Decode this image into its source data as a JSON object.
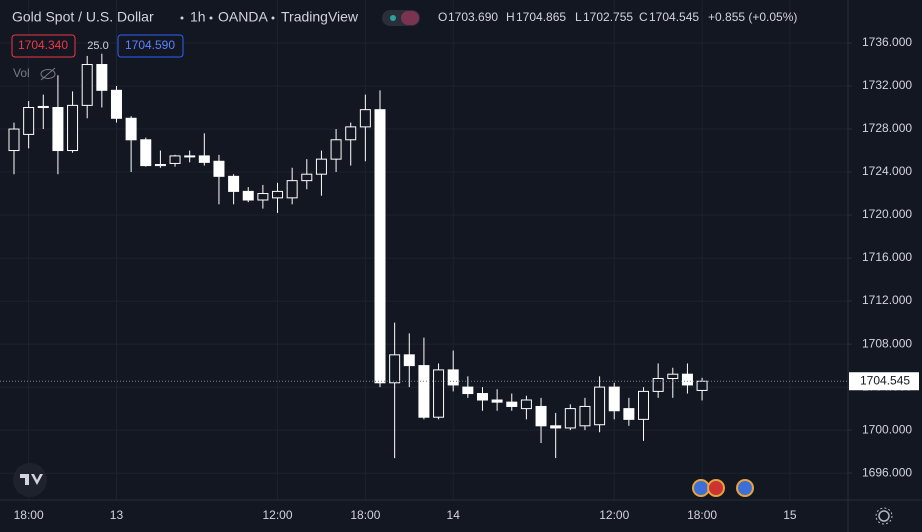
{
  "header": {
    "symbol": "Gold Spot / U.S. Dollar",
    "interval": "1h",
    "source": "OANDA",
    "platform": "TradingView",
    "ohlc": [
      {
        "key": "O",
        "value": "1703.690"
      },
      {
        "key": "H",
        "value": "1704.865"
      },
      {
        "key": "L",
        "value": "1702.755"
      },
      {
        "key": "C",
        "value": "1704.545"
      }
    ],
    "change": "+0.855 (+0.05%)"
  },
  "trade": {
    "sell": "1704.340",
    "spread": "25.0",
    "buy": "1704.590",
    "volume_label": "Vol"
  },
  "chart_data": {
    "type": "candlestick",
    "categories": [
      null,
      "18:00",
      null,
      null,
      null,
      null,
      null,
      "13",
      null,
      null,
      null,
      null,
      null,
      null,
      null,
      null,
      null,
      null,
      "12:00",
      null,
      null,
      null,
      null,
      null,
      "18:00",
      null,
      null,
      null,
      null,
      null,
      "14",
      null,
      null,
      null,
      null,
      null,
      null,
      null,
      null,
      null,
      null,
      "12:00",
      null,
      null,
      null,
      null,
      null,
      "18:00",
      null,
      null,
      null,
      null,
      null,
      "15",
      null,
      null,
      null
    ],
    "open": [
      1726.0,
      1727.5,
      1730.0,
      1730.0,
      1726.0,
      1730.2,
      1734.0,
      1731.6,
      1729.0,
      1727.0,
      1724.6,
      1724.8,
      1725.5,
      1725.5,
      1725.0,
      1723.6,
      1722.2,
      1721.4,
      1721.6,
      1721.6,
      1723.2,
      1723.8,
      1725.2,
      1727.0,
      1728.2,
      1729.8,
      1704.4,
      1707.0,
      1706.0,
      1701.2,
      1705.6,
      1704.0,
      1703.4,
      1702.8,
      1702.6,
      1702.0,
      1702.2,
      1700.4,
      1700.2,
      1700.4,
      1700.5,
      1704.0,
      1702.0,
      1701.0,
      1703.6,
      1704.8,
      1705.2,
      1703.69,
      null,
      null,
      null,
      null,
      null,
      null,
      null,
      null,
      null
    ],
    "high": [
      1728.6,
      1730.6,
      1731.2,
      1733.0,
      1731.5,
      1734.8,
      1735.0,
      1732.0,
      1729.2,
      1727.2,
      1726.0,
      1725.6,
      1726.0,
      1727.6,
      1725.6,
      1723.8,
      1722.6,
      1722.8,
      1723.0,
      1724.4,
      1725.2,
      1726.0,
      1728.0,
      1728.6,
      1731.2,
      1731.6,
      1710.0,
      1709.0,
      1708.6,
      1706.2,
      1707.4,
      1705.0,
      1704.0,
      1703.8,
      1703.4,
      1703.2,
      1703.0,
      1701.6,
      1702.4,
      1703.0,
      1705.0,
      1704.4,
      1703.0,
      1704.0,
      1706.2,
      1705.8,
      1706.2,
      1704.865,
      null,
      null,
      null,
      null,
      null,
      null,
      null,
      null,
      null
    ],
    "low": [
      1723.8,
      1726.2,
      1728.0,
      1723.8,
      1725.8,
      1729.0,
      1730.0,
      1728.6,
      1724.0,
      1724.5,
      1724.4,
      1724.5,
      1724.9,
      1724.6,
      1721.0,
      1721.0,
      1721.2,
      1720.6,
      1720.2,
      1721.0,
      1722.4,
      1721.8,
      1724.0,
      1724.6,
      1725.0,
      1704.0,
      1697.4,
      1704.0,
      1701.0,
      1701.0,
      1703.6,
      1703.0,
      1701.8,
      1701.8,
      1701.8,
      1701.0,
      1698.8,
      1697.4,
      1700.0,
      1700.0,
      1699.8,
      1701.0,
      1700.4,
      1699.0,
      1703.0,
      1703.0,
      1703.4,
      1702.755,
      null,
      null,
      null,
      null,
      null,
      null,
      null,
      null,
      null
    ],
    "close": [
      1728.0,
      1730.0,
      1730.1,
      1726.0,
      1730.2,
      1734.0,
      1731.6,
      1729.0,
      1727.0,
      1724.6,
      1724.7,
      1725.5,
      1725.5,
      1724.9,
      1723.6,
      1722.2,
      1721.4,
      1722.0,
      1722.2,
      1723.2,
      1723.8,
      1725.2,
      1727.0,
      1728.2,
      1729.8,
      1704.4,
      1707.0,
      1706.0,
      1701.2,
      1705.6,
      1704.2,
      1703.4,
      1702.8,
      1702.6,
      1702.2,
      1702.8,
      1700.4,
      1700.2,
      1702.0,
      1702.2,
      1704.0,
      1701.8,
      1701.0,
      1703.6,
      1704.8,
      1705.2,
      1704.2,
      1704.545,
      null,
      null,
      null,
      null,
      null,
      null,
      null,
      null,
      null
    ],
    "color": "#ffffff",
    "ylim": [
      1693.5,
      1740
    ],
    "yticks": [
      {
        "value": 1696,
        "label": "1696.000"
      },
      {
        "value": 1700,
        "label": "1700.000"
      },
      {
        "value": 1704,
        "label": "1704.000"
      },
      {
        "value": 1708,
        "label": "1708.000"
      },
      {
        "value": 1712,
        "label": "1712.000"
      },
      {
        "value": 1716,
        "label": "1716.000"
      },
      {
        "value": 1720,
        "label": "1720.000"
      },
      {
        "value": 1724,
        "label": "1724.000"
      },
      {
        "value": 1728,
        "label": "1728.000"
      },
      {
        "value": 1732,
        "label": "1732.000"
      },
      {
        "value": 1736,
        "label": "1736.000"
      }
    ],
    "last_price": {
      "value": 1704.545,
      "label": "1704.545"
    },
    "grid": true
  }
}
